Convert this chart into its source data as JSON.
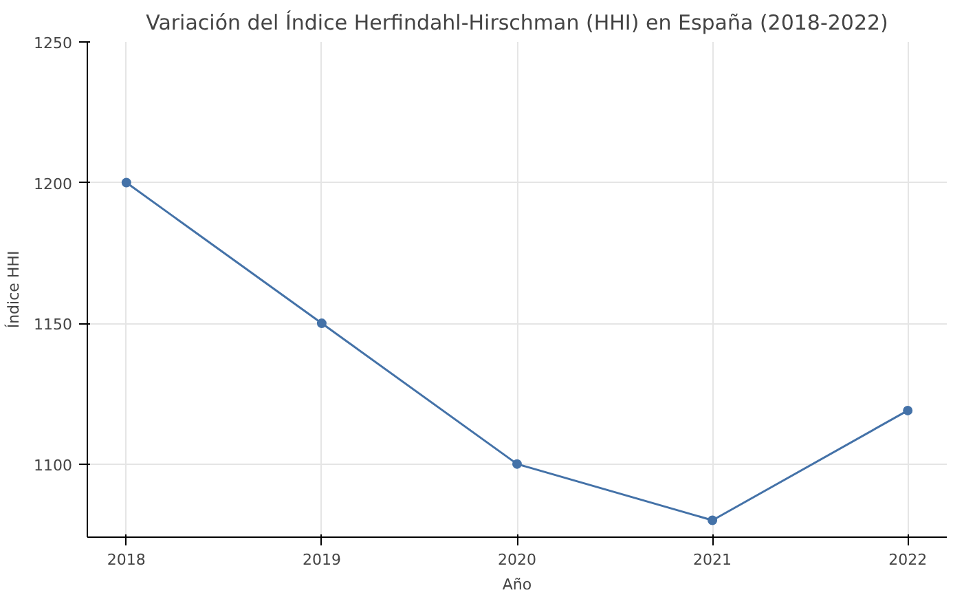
{
  "chart_data": {
    "type": "line",
    "title": "Variación del Índice Herfindahl-Hirschman (HHI) en España (2018-2022)",
    "xlabel": "Año",
    "ylabel": "Índice HHI",
    "x": [
      2018,
      2019,
      2020,
      2021,
      2022
    ],
    "series": [
      {
        "color": "#4472a8",
        "values": [
          1200,
          1150,
          1100,
          1080,
          1119
        ]
      }
    ],
    "xlim": [
      2017.8,
      2022.2
    ],
    "xticks": [
      2018,
      2019,
      2020,
      2021,
      2022
    ],
    "ylim": [
      1074,
      1250
    ],
    "yticks": [
      1100,
      1150,
      1200,
      1250
    ],
    "grid": true,
    "marker": "circle",
    "line_style": "solid"
  }
}
